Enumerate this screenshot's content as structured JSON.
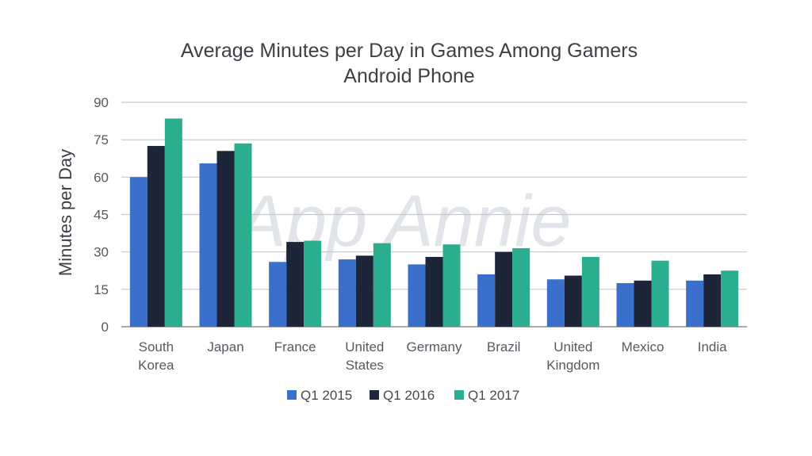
{
  "watermark": "App Annie",
  "chart_data": {
    "type": "bar",
    "title": "Average Minutes per Day in Games Among Gamers",
    "subtitle": "Android Phone",
    "xlabel": "",
    "ylabel": "Minutes per Day",
    "ylim": [
      0,
      90
    ],
    "yticks": [
      0,
      15,
      30,
      45,
      60,
      75,
      90
    ],
    "grid": true,
    "legend_position": "bottom",
    "categories": [
      [
        "South",
        "Korea"
      ],
      [
        "Japan"
      ],
      [
        "France"
      ],
      [
        "United",
        "States"
      ],
      [
        "Germany"
      ],
      [
        "Brazil"
      ],
      [
        "United",
        "Kingdom"
      ],
      [
        "Mexico"
      ],
      [
        "India"
      ]
    ],
    "series": [
      {
        "name": "Q1 2015",
        "color": "#3a6fcb",
        "values": [
          60,
          65.5,
          26,
          27,
          25,
          21,
          19,
          17.5,
          18.5
        ]
      },
      {
        "name": "Q1 2016",
        "color": "#1c2638",
        "values": [
          72.5,
          70.5,
          34,
          28.5,
          28,
          30,
          20.5,
          18.5,
          21
        ]
      },
      {
        "name": "Q1 2017",
        "color": "#2bad8f",
        "values": [
          83.5,
          73.5,
          34.5,
          33.5,
          33,
          31.5,
          28,
          26.5,
          22.5
        ]
      }
    ]
  }
}
